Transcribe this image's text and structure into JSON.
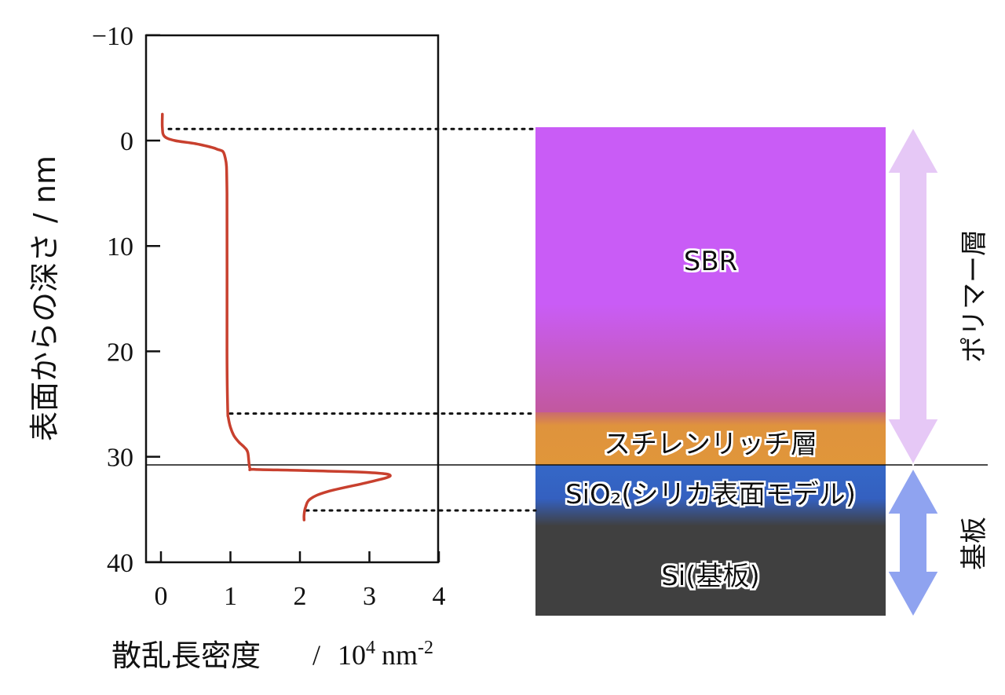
{
  "chart_data": {
    "type": "line",
    "xlabel": "散乱長密度",
    "xunit_base": "10",
    "xunit_exp": "4",
    "xunit_unit": "nm",
    "xunit_unit_exp": "-2",
    "ylabel": "表面からの深さ / nm",
    "xlim": [
      0,
      4
    ],
    "ylim": [
      -10,
      40
    ],
    "y_inverted": true,
    "xticks": [
      0,
      1,
      2,
      3,
      4
    ],
    "yticks": [
      -10,
      0,
      10,
      20,
      30,
      40
    ],
    "xtick_labels": [
      "0",
      "1",
      "2",
      "3",
      "4"
    ],
    "ytick_labels": [
      "−10",
      "0",
      "10",
      "20",
      "30",
      "40"
    ],
    "series": [
      {
        "color": "#c8402e",
        "x": [
          0.02,
          0.02,
          0.05,
          0.2,
          0.5,
          0.8,
          0.92,
          0.95,
          0.95,
          0.96,
          0.97,
          1.0,
          1.05,
          1.12,
          1.2,
          1.25,
          1.28,
          1.35,
          2.0,
          3.0,
          3.3,
          3.0,
          2.4,
          2.15,
          2.08,
          2.06,
          2.06
        ],
        "y": [
          -2.5,
          -1.2,
          -0.4,
          0,
          0.3,
          0.8,
          1.5,
          5,
          20,
          25.5,
          26.3,
          27.2,
          28.0,
          28.6,
          29.1,
          29.6,
          31.1,
          31.2,
          31.3,
          31.5,
          31.8,
          32.4,
          33.3,
          34.0,
          34.8,
          35.5,
          36.0
        ]
      }
    ],
    "reference_lines": {
      "solid_depth": 30.8,
      "dotted_depths": [
        -1.1,
        25.9,
        35.1
      ]
    },
    "layers": [
      {
        "name": "SBR",
        "top": -1.1,
        "bottom": 25.9,
        "color": "#c95cf6",
        "transition_color": "#c2589e"
      },
      {
        "name": "スチレンリッチ層",
        "top": 25.9,
        "bottom": 30.8,
        "color": "#e0963a"
      },
      {
        "name": "SiO₂(シリカ表面モデル)",
        "top": 30.8,
        "bottom": 35.1,
        "color": "#3568c7"
      },
      {
        "name": "Si(基板)",
        "top": 35.1,
        "bottom": 45.5,
        "color": "#404040"
      }
    ],
    "brackets": [
      {
        "label": "ポリマー層",
        "top": -1.1,
        "bottom": 30.8,
        "color": "#e6c8f6"
      },
      {
        "label": "基板",
        "top": 30.8,
        "bottom": 45.5,
        "color": "#8fa3f0"
      }
    ]
  }
}
